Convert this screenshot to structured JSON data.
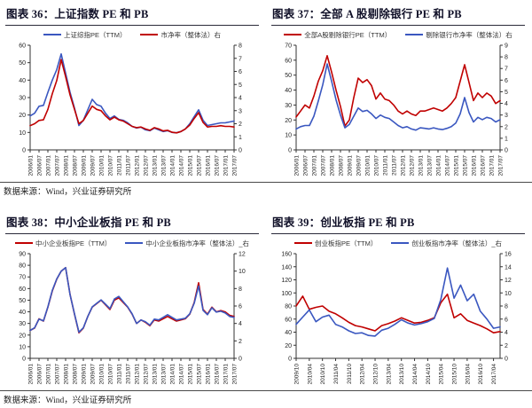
{
  "footers": [
    "数据来源：Wind，兴业证券研究所",
    "数据来源：Wind，兴业证券研究所"
  ],
  "colors": {
    "blue_line": "#3a57c0",
    "red_line": "#c00000"
  },
  "chart_data": [
    {
      "type": "line",
      "title": "图表 36：上证指数 PE 和 PB",
      "legend_position": "top-center",
      "x_labels": [
        "2006/01",
        "2006/07",
        "2007/01",
        "2007/07",
        "2008/01",
        "2008/07",
        "2009/01",
        "2009/07",
        "2010/01",
        "2010/07",
        "2011/01",
        "2011/07",
        "2012/01",
        "2012/07",
        "2013/01",
        "2013/07",
        "2014/01",
        "2014/07",
        "2015/01",
        "2015/07",
        "2016/01",
        "2016/07",
        "2017/01",
        "2017/07"
      ],
      "left_axis": {
        "min": 0,
        "max": 60,
        "step": 10
      },
      "right_axis": {
        "min": 0,
        "max": 8,
        "step": 1
      },
      "series": [
        {
          "name": "上证综指PE（TTM）",
          "color": "#3a57c0",
          "axis": "left",
          "values": [
            19.5,
            21,
            25,
            25.5,
            33,
            40,
            46,
            55,
            44,
            33,
            24,
            14,
            17,
            23,
            29,
            26,
            25,
            21,
            18,
            19.5,
            17.5,
            17,
            15.5,
            13.5,
            12.5,
            13,
            11.5,
            11,
            12.5,
            11.5,
            10.5,
            11,
            10,
            9.8,
            10.5,
            12,
            15,
            19,
            23,
            17,
            14,
            14.5,
            15,
            15.5,
            15.5,
            16,
            16.5
          ]
        },
        {
          "name": "市净率（整体法）右",
          "color": "#c00000",
          "axis": "right",
          "values": [
            1.85,
            2.0,
            2.25,
            2.3,
            3.1,
            4.3,
            5.3,
            6.9,
            5.6,
            4.2,
            3.1,
            2.0,
            2.25,
            2.8,
            3.35,
            3.1,
            3.0,
            2.6,
            2.3,
            2.5,
            2.3,
            2.2,
            2.0,
            1.8,
            1.7,
            1.75,
            1.6,
            1.5,
            1.7,
            1.6,
            1.45,
            1.5,
            1.35,
            1.3,
            1.4,
            1.6,
            1.9,
            2.4,
            2.85,
            2.1,
            1.75,
            1.8,
            1.8,
            1.85,
            1.8,
            1.8,
            1.75
          ]
        }
      ]
    },
    {
      "type": "line",
      "title": "图表 37：全部 A 股剔除银行 PE 和 PB",
      "legend_position": "top-center",
      "x_labels": [
        "2006/01",
        "2006/07",
        "2007/01",
        "2007/07",
        "2008/01",
        "2008/07",
        "2009/01",
        "2009/07",
        "2010/01",
        "2010/07",
        "2011/01",
        "2011/07",
        "2012/01",
        "2012/07",
        "2013/01",
        "2013/07",
        "2014/01",
        "2014/07",
        "2015/01",
        "2015/07",
        "2016/01",
        "2016/07",
        "2017/01",
        "2017/07"
      ],
      "left_axis": {
        "min": 0,
        "max": 70,
        "step": 10
      },
      "right_axis": {
        "min": 0,
        "max": 9,
        "step": 1
      },
      "series": [
        {
          "name": "全部A股剔除银行PE（TTM）",
          "color": "#c00000",
          "axis": "left",
          "values": [
            22,
            26,
            30,
            28,
            36,
            46,
            53,
            63,
            52,
            40,
            29,
            16,
            20,
            35,
            48,
            45,
            47,
            43,
            34,
            38,
            34,
            33,
            30,
            26,
            24,
            26,
            24,
            23,
            26,
            26,
            27,
            28,
            27,
            26,
            28,
            31,
            35,
            46,
            57,
            45,
            33,
            38,
            35,
            38,
            36,
            31,
            33
          ]
        },
        {
          "name": "剔除银行市净率（整体法）右",
          "color": "#3a57c0",
          "axis": "right",
          "values": [
            1.8,
            2.0,
            2.1,
            2.1,
            2.9,
            4.2,
            5.6,
            7.4,
            5.9,
            4.3,
            3.0,
            1.9,
            2.2,
            2.9,
            3.6,
            3.3,
            3.4,
            3.1,
            2.7,
            3.0,
            2.8,
            2.7,
            2.4,
            2.1,
            1.9,
            2.0,
            1.8,
            1.7,
            1.9,
            1.85,
            1.8,
            1.9,
            1.8,
            1.75,
            1.85,
            2.0,
            2.3,
            3.1,
            4.5,
            3.2,
            2.4,
            2.8,
            2.6,
            2.8,
            2.7,
            2.4,
            2.6
          ]
        }
      ]
    },
    {
      "type": "line",
      "title": "图表 38：中小企业板指 PE 和 PB",
      "legend_position": "top-center",
      "x_labels": [
        "2006/01",
        "2006/07",
        "2007/01",
        "2007/07",
        "2008/01",
        "2008/07",
        "2009/01",
        "2009/07",
        "2010/01",
        "2010/07",
        "2011/01",
        "2011/07",
        "2012/01",
        "2012/07",
        "2013/01",
        "2013/07",
        "2014/01",
        "2014/07",
        "2015/01",
        "2015/07",
        "2016/01",
        "2016/07",
        "2017/01",
        "2017/07"
      ],
      "left_axis": {
        "min": 0,
        "max": 90,
        "step": 10
      },
      "right_axis": {
        "min": 0,
        "max": 12,
        "step": 2
      },
      "series": [
        {
          "name": "中小企业板指PE（TTM）",
          "color": "#c00000",
          "axis": "left",
          "values": [
            24,
            26,
            34,
            32,
            44,
            58,
            68,
            75,
            78,
            55,
            38,
            22,
            26,
            36,
            44,
            47,
            50,
            46,
            42,
            50,
            52,
            48,
            44,
            38,
            30,
            33,
            31,
            28,
            33,
            32,
            34,
            36,
            34,
            32,
            33,
            34,
            38,
            48,
            65,
            42,
            38,
            44,
            40,
            41,
            40,
            37,
            36
          ]
        },
        {
          "name": "中小企业板指市净率（整体法）_右",
          "color": "#3a57c0",
          "axis": "right",
          "values": [
            3.2,
            3.5,
            4.5,
            4.3,
            5.9,
            7.8,
            9.1,
            10.0,
            10.4,
            7.3,
            5.1,
            3.0,
            3.5,
            4.8,
            5.9,
            6.3,
            6.7,
            6.2,
            5.7,
            6.8,
            7.1,
            6.5,
            5.9,
            5.1,
            4.0,
            4.4,
            4.2,
            3.8,
            4.5,
            4.4,
            4.7,
            5.0,
            4.7,
            4.4,
            4.5,
            4.6,
            5.1,
            6.3,
            8.3,
            5.5,
            5.0,
            5.8,
            5.3,
            5.4,
            5.2,
            4.8,
            4.7
          ]
        }
      ]
    },
    {
      "type": "line",
      "title": "图表 39：创业板指 PE 和 PB",
      "legend_position": "top-center",
      "x_labels": [
        "2009/10",
        "2010/04",
        "2010/10",
        "2011/04",
        "2011/10",
        "2012/04",
        "2012/10",
        "2013/04",
        "2013/10",
        "2014/04",
        "2014/10",
        "2015/04",
        "2015/10",
        "2016/04",
        "2016/10",
        "2017/04"
      ],
      "left_axis": {
        "min": 0,
        "max": 160,
        "step": 20
      },
      "right_axis": {
        "min": 0,
        "max": 16,
        "step": 2
      },
      "series": [
        {
          "name": "创业板指PE（TTM）",
          "color": "#c00000",
          "axis": "left",
          "values": [
            80,
            95,
            75,
            78,
            80,
            72,
            68,
            62,
            55,
            50,
            48,
            45,
            42,
            50,
            53,
            57,
            62,
            58,
            54,
            55,
            58,
            62,
            85,
            98,
            62,
            68,
            58,
            54,
            50,
            45,
            39,
            41
          ]
        },
        {
          "name": "创业板指市净率（整体法）_右",
          "color": "#3a57c0",
          "axis": "right",
          "values": [
            5.2,
            6.3,
            7.4,
            5.6,
            6.3,
            6.6,
            5.2,
            4.8,
            4.2,
            3.8,
            3.9,
            3.5,
            3.4,
            4.3,
            4.6,
            5.2,
            5.9,
            5.4,
            5.1,
            5.3,
            5.6,
            6.1,
            9.0,
            13.8,
            9.2,
            11.2,
            8.8,
            9.8,
            7.2,
            6.0,
            4.6,
            4.8
          ]
        }
      ]
    }
  ]
}
